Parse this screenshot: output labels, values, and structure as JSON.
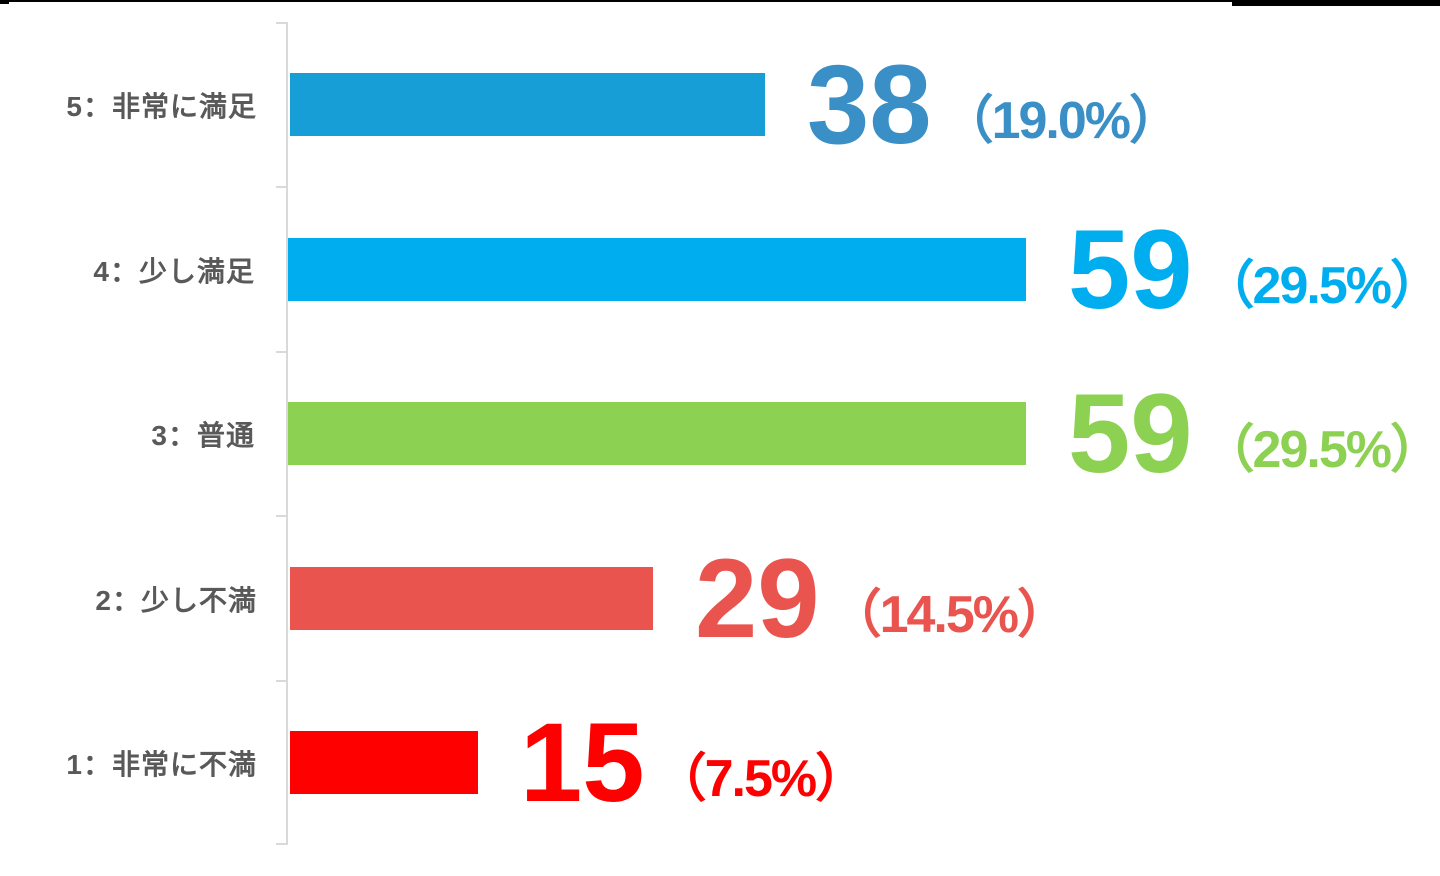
{
  "chart_data": {
    "type": "bar",
    "orientation": "horizontal",
    "title": "",
    "categories": [
      "5：非常に満足",
      "4：少し満足",
      "3：普通",
      "2：少し不満",
      "1：非常に不満"
    ],
    "values": [
      38,
      59,
      59,
      29,
      15
    ],
    "data_labels": [
      "38",
      "59",
      "59",
      "29",
      "15"
    ],
    "percent_labels": [
      "（19.0%）",
      "（29.5%）",
      "（29.5%）",
      "（14.5%）",
      "（7.5%）"
    ],
    "xlim": [
      0,
      60
    ],
    "grid": false,
    "legend": false,
    "axis_color": "#D9D9D9",
    "label_color": "#595959",
    "rows": [
      {
        "category": "5：非常に満足",
        "value": 38,
        "percent_label": "（19.0%）",
        "bar_color": "#189ED6",
        "number_color": "#3A8FC6"
      },
      {
        "category": "4：少し満足",
        "value": 59,
        "percent_label": "（29.5%）",
        "bar_color": "#00AEEF",
        "number_color": "#00AEEF"
      },
      {
        "category": "3：普通",
        "value": 59,
        "percent_label": "（29.5%）",
        "bar_color": "#8DD152",
        "number_color": "#8DD152"
      },
      {
        "category": "2：少し不満",
        "value": 29,
        "percent_label": "（14.5%）",
        "bar_color": "#E9544F",
        "number_color": "#E9544F"
      },
      {
        "category": "1：非常に不満",
        "value": 15,
        "percent_label": "（7.5%）",
        "bar_color": "#FE0000",
        "number_color": "#FE0000"
      }
    ]
  }
}
